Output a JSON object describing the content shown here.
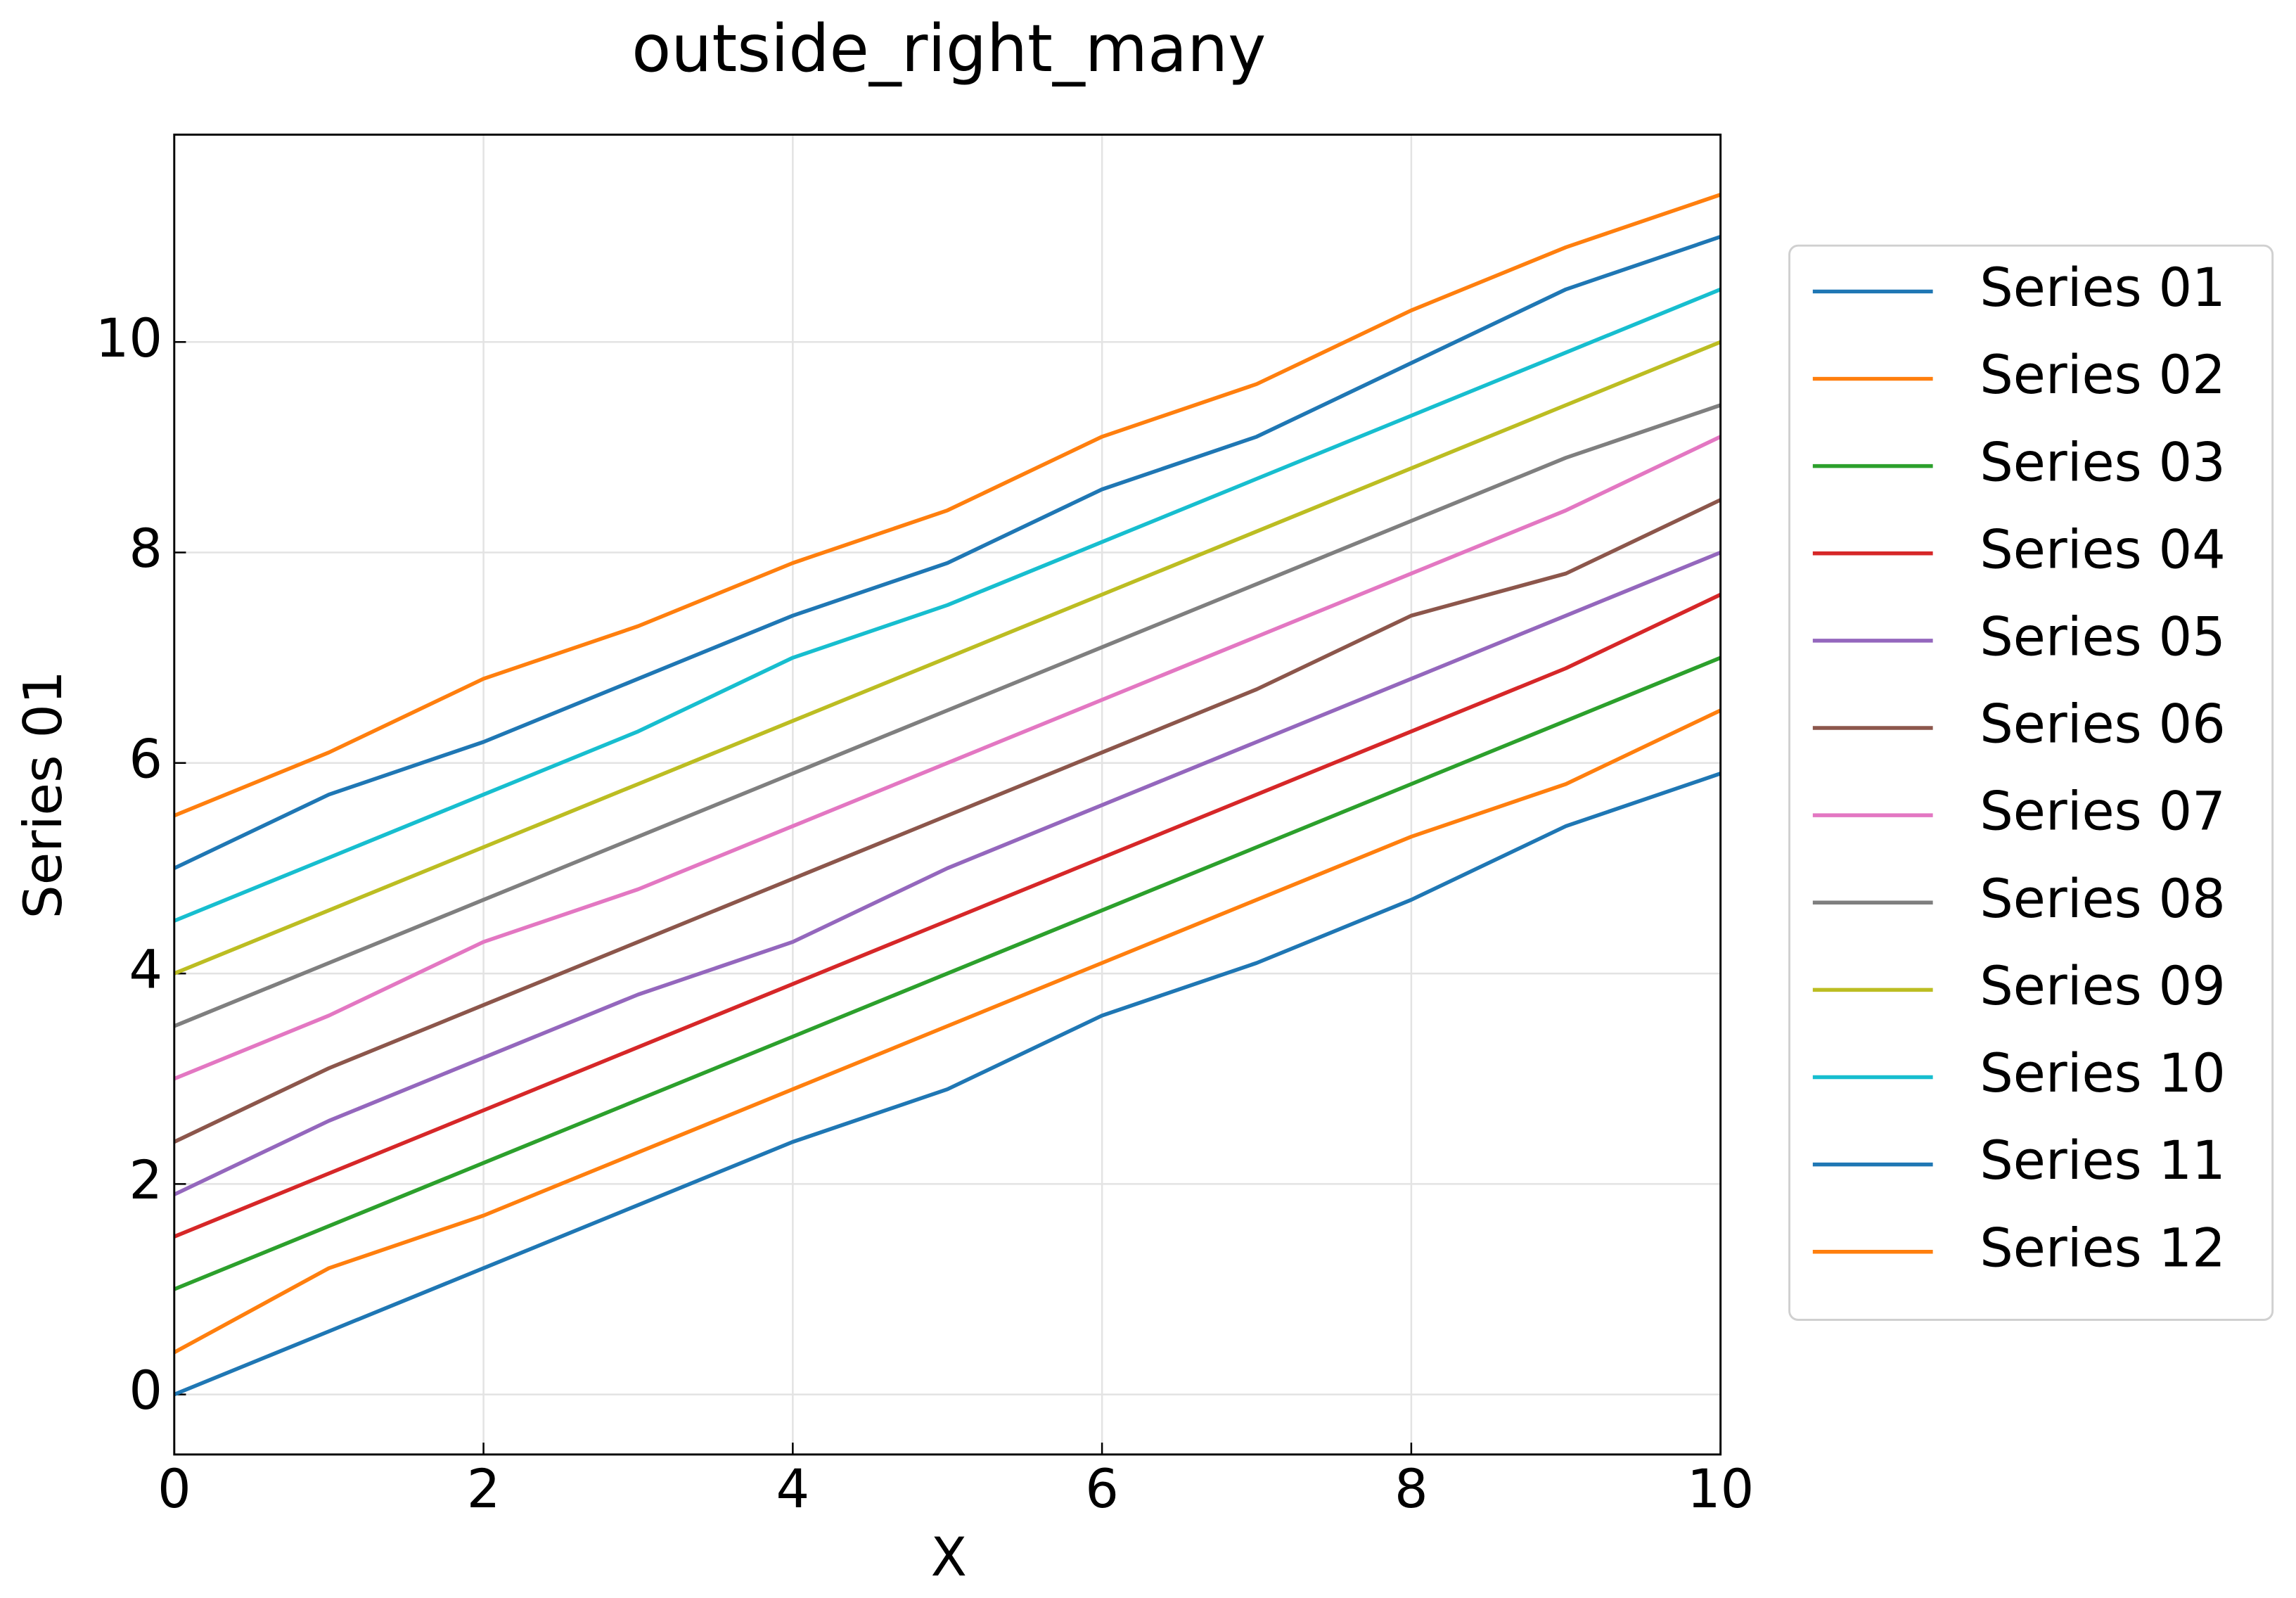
{
  "chart_data": {
    "type": "line",
    "title": "outside_right_many",
    "x_label": "X",
    "y_label": "Series 01",
    "x": [
      0,
      1,
      2,
      3,
      4,
      5,
      6,
      7,
      8,
      9,
      10
    ],
    "series": [
      {
        "name": "Series 01",
        "color": "#1f77b4",
        "values": [
          5.0,
          5.7,
          6.2,
          6.8,
          7.4,
          7.9,
          8.6,
          9.1,
          9.8,
          10.5,
          11.0
        ]
      },
      {
        "name": "Series 02",
        "color": "#ff7f0e",
        "values": [
          5.5,
          6.1,
          6.8,
          7.3,
          7.9,
          8.4,
          9.1,
          9.6,
          10.3,
          10.9,
          11.4
        ]
      },
      {
        "name": "Series 03",
        "color": "#2ca02c",
        "values": [
          1.0,
          1.6,
          2.2,
          2.8,
          3.4,
          4.0,
          4.6,
          5.2,
          5.8,
          6.4,
          7.0
        ]
      },
      {
        "name": "Series 04",
        "color": "#d62728",
        "values": [
          1.5,
          2.1,
          2.7,
          3.3,
          3.9,
          4.5,
          5.1,
          5.7,
          6.3,
          6.9,
          7.6
        ]
      },
      {
        "name": "Series 05",
        "color": "#9467bd",
        "values": [
          1.9,
          2.6,
          3.2,
          3.8,
          4.3,
          5.0,
          5.6,
          6.2,
          6.8,
          7.4,
          8.0
        ]
      },
      {
        "name": "Series 06",
        "color": "#8c564b",
        "values": [
          2.4,
          3.1,
          3.7,
          4.3,
          4.9,
          5.5,
          6.1,
          6.7,
          7.4,
          7.8,
          8.5
        ]
      },
      {
        "name": "Series 07",
        "color": "#e377c2",
        "values": [
          3.0,
          3.6,
          4.3,
          4.8,
          5.4,
          6.0,
          6.6,
          7.2,
          7.8,
          8.4,
          9.1
        ]
      },
      {
        "name": "Series 08",
        "color": "#7f7f7f",
        "values": [
          3.5,
          4.1,
          4.7,
          5.3,
          5.9,
          6.5,
          7.1,
          7.7,
          8.3,
          8.9,
          9.4
        ]
      },
      {
        "name": "Series 09",
        "color": "#bcbd22",
        "values": [
          4.0,
          4.6,
          5.2,
          5.8,
          6.4,
          7.0,
          7.6,
          8.2,
          8.8,
          9.4,
          10.0
        ]
      },
      {
        "name": "Series 10",
        "color": "#17becf",
        "values": [
          4.5,
          5.1,
          5.7,
          6.3,
          7.0,
          7.5,
          8.1,
          8.7,
          9.3,
          9.9,
          10.5
        ]
      },
      {
        "name": "Series 11",
        "color": "#1f77b4",
        "values": [
          0.0,
          0.6,
          1.2,
          1.8,
          2.4,
          2.9,
          3.6,
          4.1,
          4.7,
          5.4,
          5.9
        ]
      },
      {
        "name": "Series 12",
        "color": "#ff7f0e",
        "values": [
          0.4,
          1.2,
          1.7,
          2.3,
          2.9,
          3.5,
          4.1,
          4.7,
          5.3,
          5.8,
          6.5
        ]
      }
    ],
    "xlim": [
      0,
      10
    ],
    "ylim": [
      -0.57,
      11.97
    ],
    "xticks": [
      0,
      2,
      4,
      6,
      8,
      10
    ],
    "yticks": [
      0,
      2,
      4,
      6,
      8,
      10
    ],
    "grid": true,
    "legend_loc": "right"
  }
}
